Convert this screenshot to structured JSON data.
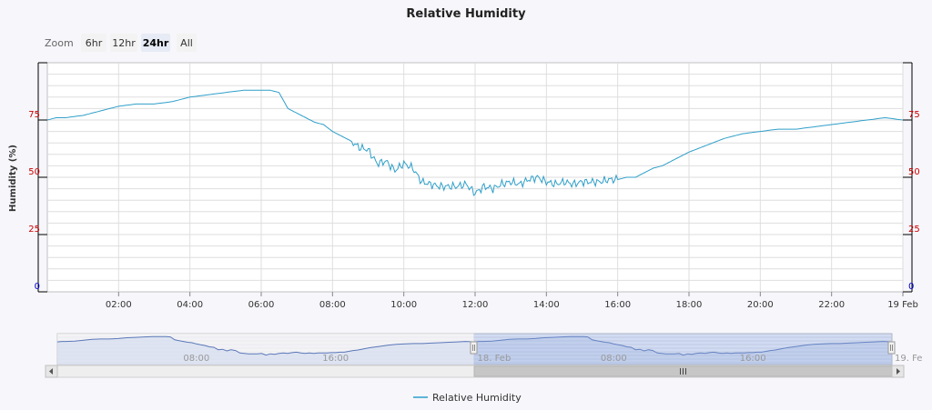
{
  "chart_data": {
    "type": "line",
    "title": "Relative Humidity",
    "ylabel": "Humidity (%)",
    "xlabel": "",
    "ylim": [
      0,
      100
    ],
    "y_ticks": [
      "0",
      "25",
      "50",
      "75"
    ],
    "y_tick_values": [
      0,
      25,
      50,
      75
    ],
    "y_tick_colors": [
      "#0000cc",
      "#cc0000",
      "#cc0000",
      "#cc0000"
    ],
    "x_range_hours": [
      0,
      24
    ],
    "x_ticks": [
      "02:00",
      "04:00",
      "06:00",
      "08:00",
      "10:00",
      "12:00",
      "14:00",
      "16:00",
      "18:00",
      "20:00",
      "22:00",
      "19 Feb"
    ],
    "x_tick_hours": [
      2,
      4,
      6,
      8,
      10,
      12,
      14,
      16,
      18,
      20,
      22,
      24
    ],
    "grid": true,
    "legend_position": "bottom-center",
    "series": [
      {
        "name": "Relative Humidity",
        "color": "#2f9fc9",
        "x_hours": [
          0,
          0.25,
          0.5,
          1,
          1.5,
          2,
          2.5,
          3,
          3.5,
          4,
          4.5,
          5,
          5.5,
          6,
          6.25,
          6.5,
          6.75,
          7,
          7.25,
          7.5,
          7.75,
          8,
          8.25,
          8.5,
          8.75,
          9,
          9.25,
          9.5,
          9.75,
          10,
          10.25,
          10.5,
          10.75,
          11,
          11.25,
          11.5,
          11.75,
          12,
          12.25,
          12.5,
          12.75,
          13,
          13.25,
          13.5,
          13.75,
          14,
          14.25,
          14.5,
          14.75,
          15,
          15.25,
          15.5,
          15.75,
          16,
          16.25,
          16.5,
          16.75,
          17,
          17.25,
          17.5,
          17.75,
          18,
          18.5,
          19,
          19.5,
          20,
          20.5,
          21,
          21.5,
          22,
          22.5,
          23,
          23.5,
          24
        ],
        "values": [
          75,
          76,
          76,
          77,
          79,
          81,
          82,
          82,
          83,
          85,
          86,
          87,
          88,
          88,
          88,
          87,
          80,
          78,
          76,
          74,
          73,
          70,
          68,
          66,
          63,
          62,
          56,
          57,
          53,
          56,
          54,
          48,
          47,
          46,
          46,
          46,
          47,
          43,
          46,
          45,
          47,
          48,
          47,
          49,
          50,
          48,
          47,
          48,
          47,
          48,
          48,
          48,
          49,
          49,
          50,
          50,
          52,
          54,
          55,
          57,
          59,
          61,
          64,
          67,
          69,
          70,
          71,
          71,
          72,
          73,
          74,
          75,
          76,
          75
        ]
      }
    ],
    "navigator": {
      "x_labels": [
        "08:00",
        "16:00",
        "18. Feb",
        "08:00",
        "16:00",
        "19. Fe"
      ],
      "selected_range": "18. Feb – 19 Feb"
    }
  },
  "range_selector": {
    "label": "Zoom",
    "buttons": [
      "6hr",
      "12hr",
      "24hr",
      "All"
    ],
    "active_index": 2
  },
  "colors": {
    "line": "#2f9fc9",
    "navigator_line": "#5b78b8",
    "navigator_fill": "#b7c9ec",
    "plot_bg": "#ffffff",
    "grid": "#dedede"
  }
}
